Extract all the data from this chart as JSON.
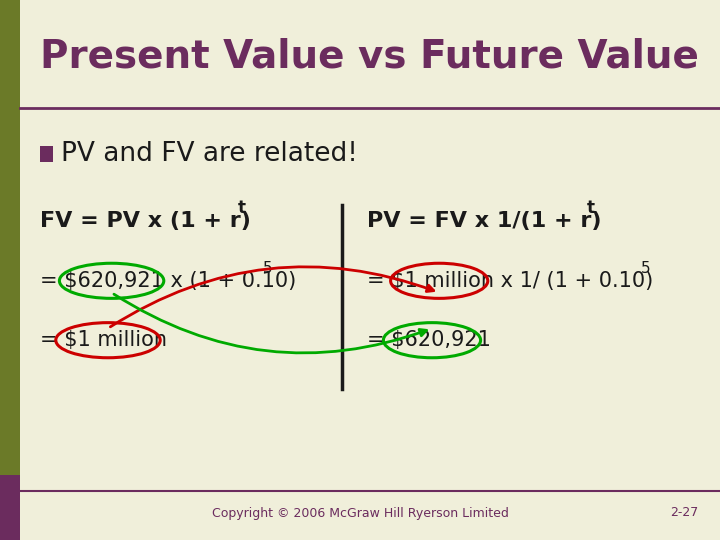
{
  "bg_color": "#f0efda",
  "title": "Present Value vs Future Value",
  "title_color": "#6b2c5e",
  "title_fontsize": 28,
  "bullet_color": "#6b2c5e",
  "bullet_text": "PV and FV are related!",
  "bullet_fontsize": 19,
  "formula_color": "#1a1a1a",
  "formula_fontsize": 15,
  "formula_bold_fontsize": 16,
  "divider_color": "#1a1a1a",
  "green_ellipse_color": "#00aa00",
  "red_ellipse_color": "#cc0000",
  "footer_text": "Copyright © 2006 McGraw Hill Ryerson Limited",
  "footer_page": "2-27",
  "footer_color": "#6b2c5e",
  "footer_fontsize": 9,
  "header_line_color": "#6b2c5e",
  "sidebar_color": "#6b7a28",
  "sidebar_bottom_color": "#6b2c5e"
}
